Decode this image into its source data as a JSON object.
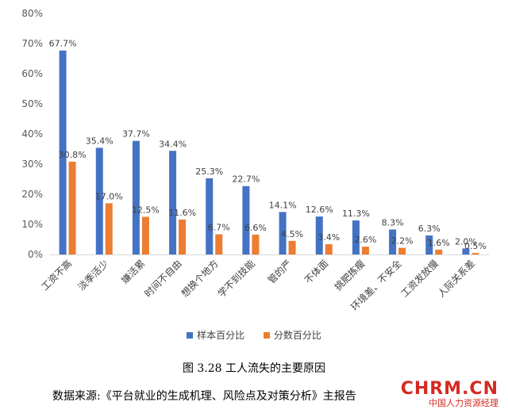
{
  "chart_data": {
    "type": "bar",
    "categories": [
      "工资不高",
      "淡季活少",
      "嫌活累",
      "时间不自由",
      "想换个地方",
      "学不到技能",
      "管的严",
      "不体面",
      "挑肥拣瘦",
      "环境差、不安全",
      "工资发放慢",
      "人际关系差"
    ],
    "series": [
      {
        "name": "样本百分比",
        "color": "#4472c4",
        "values": [
          67.7,
          35.4,
          37.7,
          34.4,
          25.3,
          22.7,
          14.1,
          12.6,
          11.3,
          8.3,
          6.3,
          2.0
        ],
        "labels": [
          "67.7%",
          "35.4%",
          "37.7%",
          "34.4%",
          "25.3%",
          "22.7%",
          "14.1%",
          "12.6%",
          "11.3%",
          "8.3%",
          "6.3%",
          "2.0%"
        ]
      },
      {
        "name": "分数百分比",
        "color": "#ed7d31",
        "values": [
          30.8,
          17.0,
          12.5,
          11.6,
          6.7,
          6.6,
          4.5,
          3.4,
          2.6,
          2.2,
          1.6,
          0.5
        ],
        "labels": [
          "30.8%",
          "17.0%",
          "12.5%",
          "11.6%",
          "6.7%",
          "6.6%",
          "4.5%",
          "3.4%",
          "2.6%",
          "2.2%",
          "1.6%",
          "0.5%"
        ]
      }
    ],
    "ylim": [
      0,
      80
    ],
    "yticks": [
      0,
      10,
      20,
      30,
      40,
      50,
      60,
      70,
      80
    ],
    "ytick_labels": [
      "0%",
      "10%",
      "20%",
      "30%",
      "40%",
      "50%",
      "60%",
      "70%",
      "80%"
    ],
    "title": "",
    "xlabel": "",
    "ylabel": "",
    "grid": false,
    "legend_position": "bottom"
  },
  "caption": "图 3.28 工人流失的主要原因",
  "source": "数据来源:《平台就业的生成机理、风险点及对策分析》主报告",
  "watermark": {
    "brand": "CHRM.CN",
    "sub": "中国人力资源经理"
  }
}
